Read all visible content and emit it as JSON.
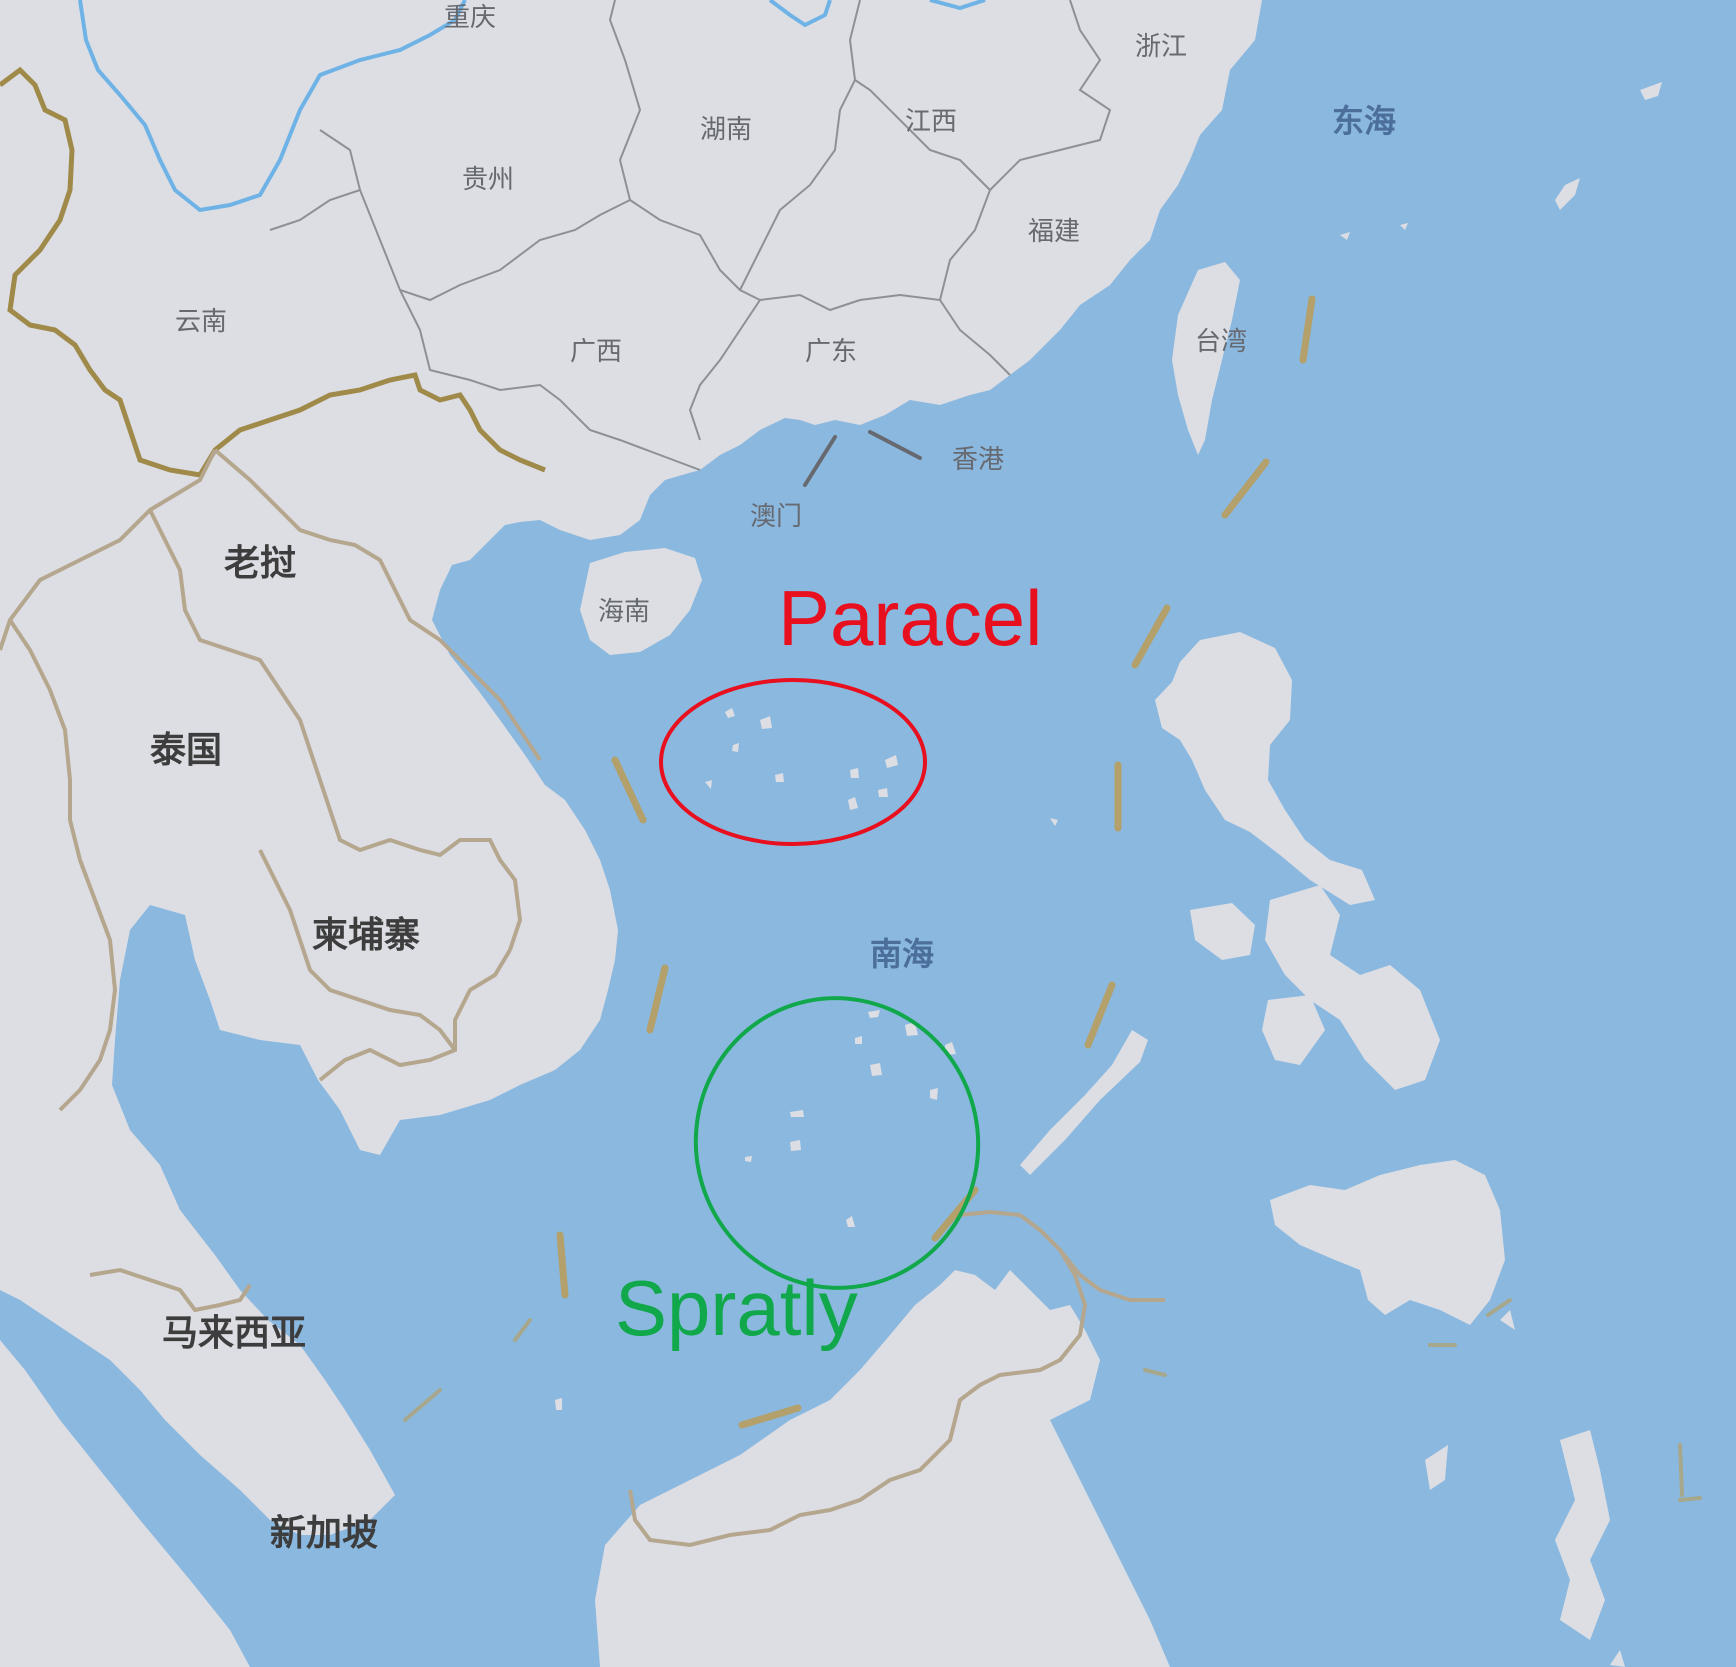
{
  "colors": {
    "sea": "#8bb8df",
    "land": "#dcdee4",
    "province_border": "#8d9095",
    "country_border": "#b5a68e",
    "china_border": "#a08a4a",
    "river": "#6fb3e6",
    "dash_line": "#b3a06a",
    "paracel": "#e8101e",
    "spratly": "#10a84a"
  },
  "labels": {
    "chongqing": "重庆",
    "zhejiang": "浙江",
    "hunan": "湖南",
    "jiangxi": "江西",
    "guizhou": "贵州",
    "fujian": "福建",
    "yunnan": "云南",
    "guangxi": "广西",
    "guangdong": "广东",
    "taiwan": "台湾",
    "hongkong": "香港",
    "macau": "澳门",
    "hainan": "海南"
  },
  "countries": {
    "laos": "老挝",
    "thailand": "泰国",
    "cambodia": "柬埔寨",
    "malaysia": "马来西亚",
    "singapore": "新加坡"
  },
  "seas": {
    "east_sea": "东海",
    "south_sea": "南海"
  },
  "annotations": {
    "paracel": "Paracel",
    "spratly": "Spratly"
  }
}
